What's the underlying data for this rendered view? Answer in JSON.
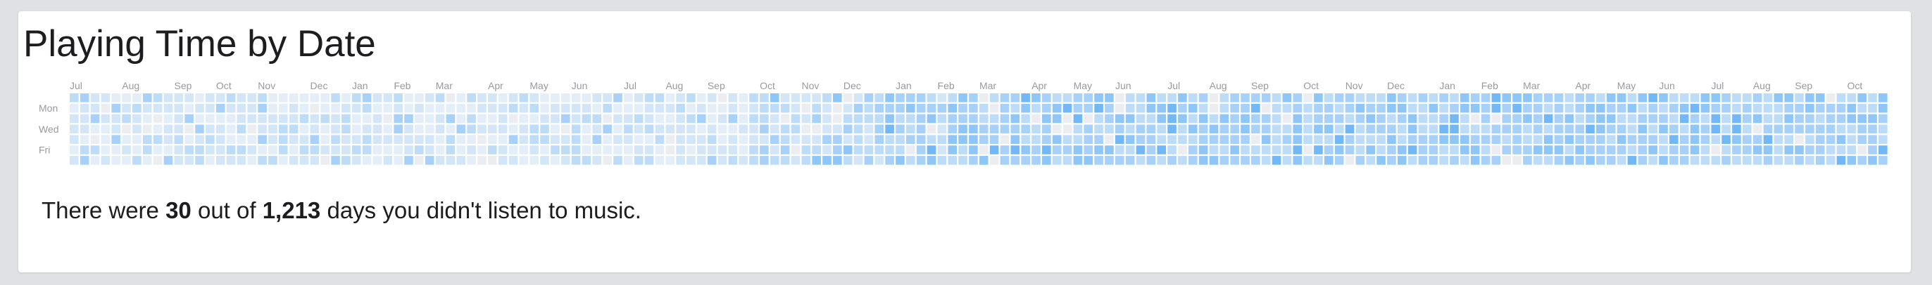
{
  "card": {
    "title": "Playing Time by Date"
  },
  "summary": {
    "prefix": "There were ",
    "missing_days": "30",
    "middle": " out of ",
    "total_days": "1,213",
    "suffix": " days you didn't listen to music."
  },
  "colors": {
    "empty": "#ebedf0",
    "scale": [
      "#e4eef8",
      "#d2e6f8",
      "#bddcf8",
      "#a7d1f8",
      "#8ec6f8",
      "#72b8f7",
      "#57aaf6"
    ]
  },
  "chart_data": {
    "type": "heatmap",
    "title": "Playing Time by Date",
    "row_labels": [
      "Mon",
      "Wed",
      "Fri"
    ],
    "rows": 7,
    "weeks": 174,
    "month_labels": [
      {
        "week": 0,
        "label": "Jul"
      },
      {
        "week": 5,
        "label": "Aug"
      },
      {
        "week": 10,
        "label": "Sep"
      },
      {
        "week": 14,
        "label": "Oct"
      },
      {
        "week": 18,
        "label": "Nov"
      },
      {
        "week": 23,
        "label": "Dec"
      },
      {
        "week": 27,
        "label": "Jan"
      },
      {
        "week": 31,
        "label": "Feb"
      },
      {
        "week": 35,
        "label": "Mar"
      },
      {
        "week": 40,
        "label": "Apr"
      },
      {
        "week": 44,
        "label": "May"
      },
      {
        "week": 48,
        "label": "Jun"
      },
      {
        "week": 53,
        "label": "Jul"
      },
      {
        "week": 57,
        "label": "Aug"
      },
      {
        "week": 61,
        "label": "Sep"
      },
      {
        "week": 66,
        "label": "Oct"
      },
      {
        "week": 70,
        "label": "Nov"
      },
      {
        "week": 74,
        "label": "Dec"
      },
      {
        "week": 79,
        "label": "Jan"
      },
      {
        "week": 83,
        "label": "Feb"
      },
      {
        "week": 87,
        "label": "Mar"
      },
      {
        "week": 92,
        "label": "Apr"
      },
      {
        "week": 96,
        "label": "May"
      },
      {
        "week": 100,
        "label": "Jun"
      },
      {
        "week": 105,
        "label": "Jul"
      },
      {
        "week": 109,
        "label": "Aug"
      },
      {
        "week": 113,
        "label": "Sep"
      },
      {
        "week": 118,
        "label": "Oct"
      },
      {
        "week": 122,
        "label": "Nov"
      },
      {
        "week": 126,
        "label": "Dec"
      },
      {
        "week": 131,
        "label": "Jan"
      },
      {
        "week": 135,
        "label": "Feb"
      },
      {
        "week": 139,
        "label": "Mar"
      },
      {
        "week": 144,
        "label": "Apr"
      },
      {
        "week": 148,
        "label": "May"
      },
      {
        "week": 152,
        "label": "Jun"
      },
      {
        "week": 157,
        "label": "Jul"
      },
      {
        "week": 161,
        "label": "Aug"
      },
      {
        "week": 165,
        "label": "Sep"
      },
      {
        "week": 170,
        "label": "Oct"
      }
    ],
    "week_levels": [
      1,
      1,
      1,
      0,
      1,
      1,
      1,
      1,
      1,
      1,
      1,
      1,
      1,
      1,
      1,
      1,
      1,
      1,
      1,
      1,
      1,
      1,
      1,
      1,
      1,
      1,
      1,
      1,
      1,
      1,
      1,
      1,
      1,
      1,
      1,
      1,
      1,
      1,
      1,
      1,
      1,
      1,
      1,
      1,
      1,
      1,
      1,
      1,
      1,
      1,
      1,
      1,
      1,
      1,
      1,
      1,
      1,
      1,
      1,
      1,
      1,
      1,
      1,
      1,
      1,
      2,
      2,
      2,
      2,
      2,
      2,
      2,
      2,
      2,
      2,
      2,
      2,
      2,
      3,
      3,
      3,
      3,
      3,
      2,
      3,
      3,
      3,
      3,
      3,
      3,
      3,
      3,
      3,
      3,
      3,
      3,
      3,
      3,
      3,
      3,
      3,
      3,
      3,
      3,
      3,
      3,
      3,
      3,
      3,
      3,
      3,
      3,
      3,
      3,
      3,
      3,
      3,
      3,
      3,
      3,
      3,
      3,
      3,
      3,
      3,
      3,
      3,
      3,
      3,
      3,
      3,
      3,
      3,
      3,
      3,
      3,
      3,
      3,
      3,
      3,
      3,
      3,
      3,
      3,
      3,
      3,
      3,
      3,
      3,
      3,
      3,
      3,
      3,
      3,
      3,
      3,
      3,
      3,
      3,
      3,
      3,
      3,
      3,
      3,
      3,
      3,
      3,
      3,
      3,
      3,
      3,
      3,
      3,
      3
    ],
    "scale_max": 6
  }
}
